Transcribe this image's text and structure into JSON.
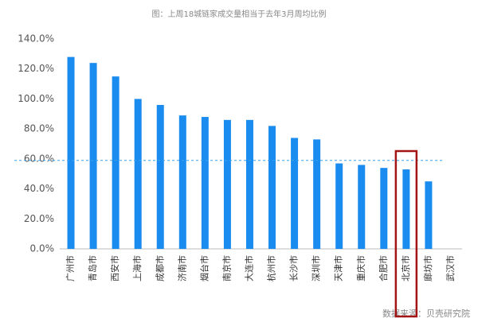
{
  "chart_data": {
    "type": "bar",
    "title": "图：上周18城链家成交量相当于去年3月周均比例",
    "categories": [
      "广州市",
      "青岛市",
      "西安市",
      "上海市",
      "成都市",
      "济南市",
      "烟台市",
      "南京市",
      "大连市",
      "杭州市",
      "长沙市",
      "深圳市",
      "天津市",
      "重庆市",
      "合肥市",
      "北京市",
      "廊坊市",
      "武汉市"
    ],
    "values": [
      128,
      124,
      115,
      100,
      96,
      89,
      88,
      86,
      86,
      82,
      74,
      73,
      57,
      56,
      54,
      53,
      45,
      0
    ],
    "color": "#1a8cf0",
    "reference_line": 59,
    "highlight_category": "北京市",
    "ylim": [
      0,
      140
    ],
    "yticks": [
      {
        "value": 0,
        "label": "0.0%"
      },
      {
        "value": 20,
        "label": "20.0%"
      },
      {
        "value": 40,
        "label": "40.0%"
      },
      {
        "value": 60,
        "label": "60.0%"
      },
      {
        "value": 80,
        "label": "80.0%"
      },
      {
        "value": 100,
        "label": "100.0%"
      },
      {
        "value": 120,
        "label": "120.0%"
      },
      {
        "value": 140,
        "label": "140.0%"
      }
    ],
    "source": "数据来源：贝壳研究院"
  }
}
